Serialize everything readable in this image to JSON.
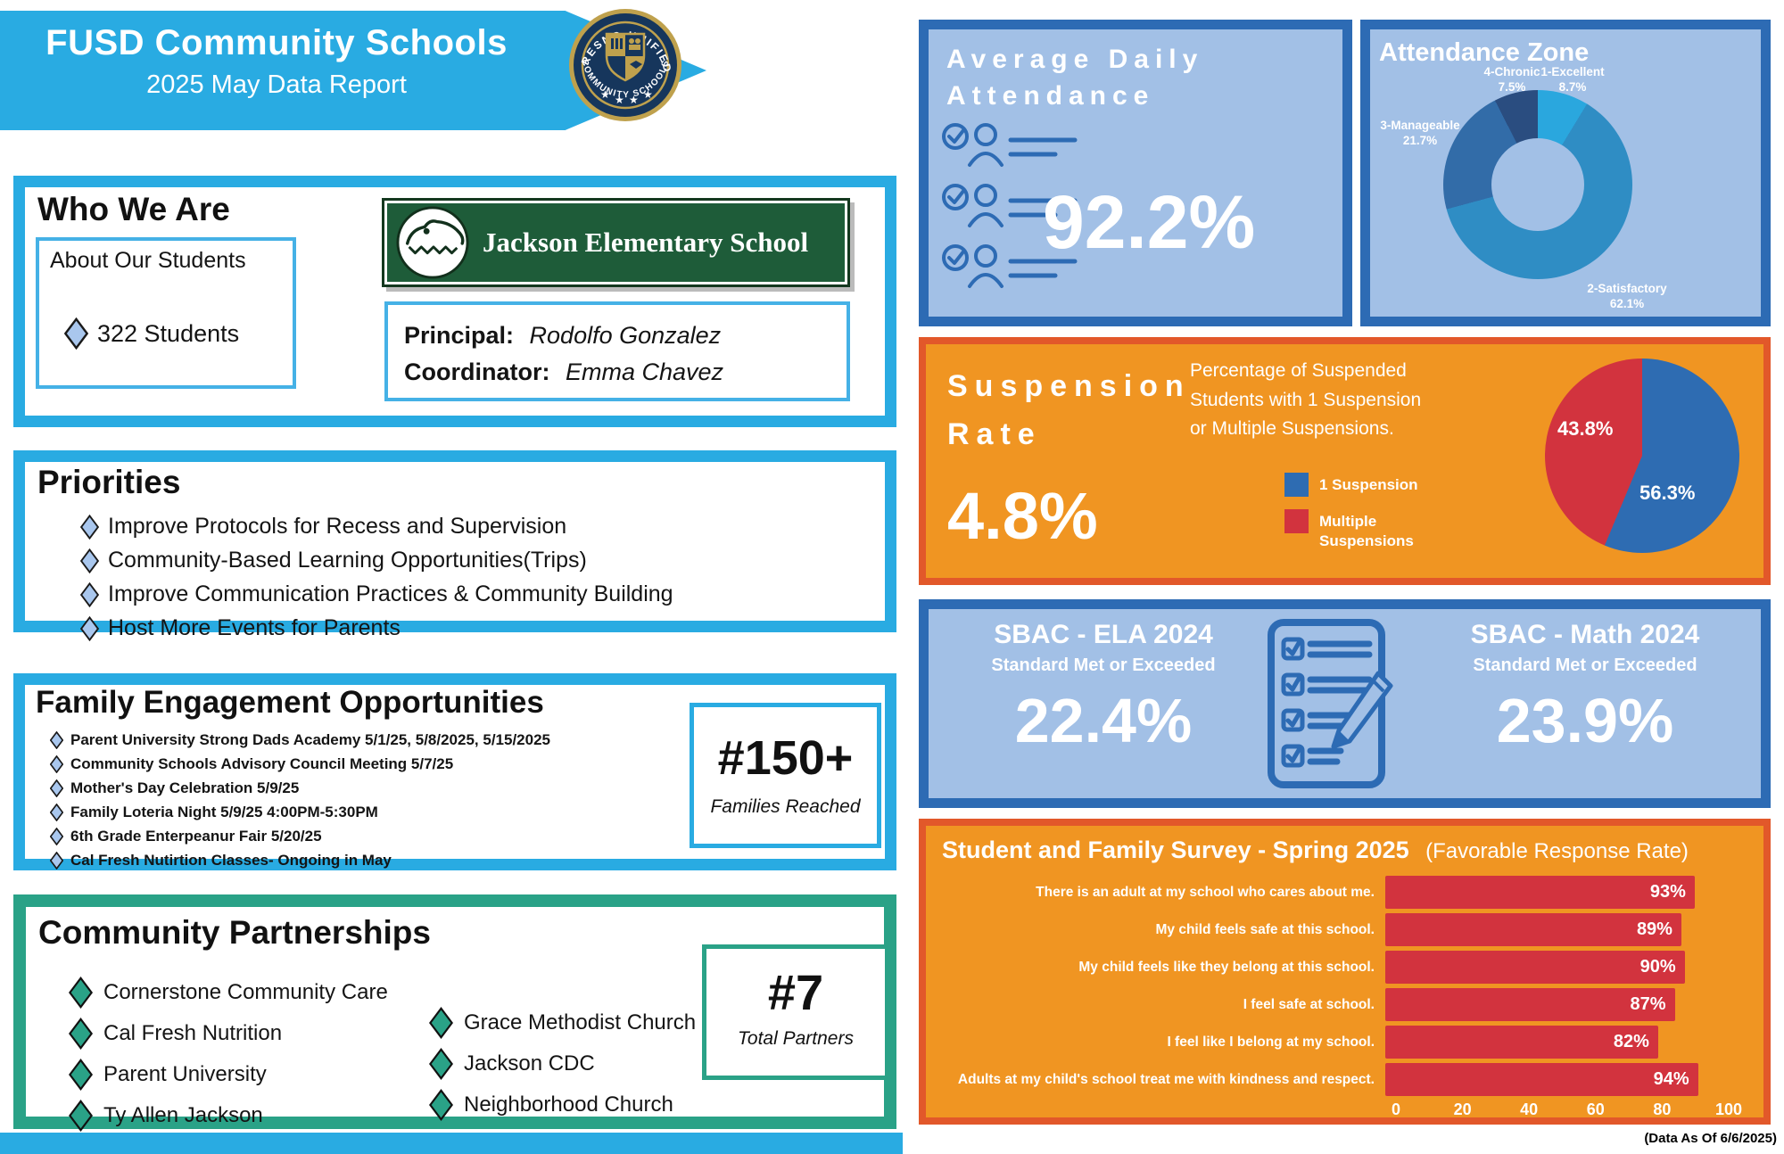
{
  "banner": {
    "title": "FUSD Community Schools",
    "subtitle": "2025 May Data Report"
  },
  "logo": {
    "top_text": "FRESNO UNIFIED",
    "bottom_text": "COMMUNITY SCHOOLS"
  },
  "who_we_are": {
    "title": "Who We Are",
    "about_label": "About Our Students",
    "students_count": "322 Students",
    "school_name": "Jackson Elementary School",
    "principal_label": "Principal:",
    "principal_name": "Rodolfo Gonzalez",
    "coordinator_label": "Coordinator:",
    "coordinator_name": "Emma Chavez"
  },
  "priorities": {
    "title": "Priorities",
    "items": [
      "Improve Protocols for Recess and Supervision",
      "Community-Based Learning Opportunities(Trips)",
      "Improve Communication Practices & Community Building",
      "Host More Events for Parents"
    ]
  },
  "family_engagement": {
    "title": "Family Engagement Opportunities",
    "items": [
      "Parent University Strong Dads Academy 5/1/25, 5/8/2025, 5/15/2025",
      "Community Schools Advisory Council Meeting 5/7/25",
      "Mother's Day Celebration 5/9/25",
      "Family Loteria Night 5/9/25 4:00PM-5:30PM",
      "6th Grade Enterpeanur Fair 5/20/25",
      "Cal Fresh Nutirtion Classes- Ongoing in May"
    ],
    "stat_value": "#150+",
    "stat_label": "Families Reached"
  },
  "partnerships": {
    "title": "Community Partnerships",
    "items_left": [
      "Cornerstone Community Care",
      "Cal Fresh Nutrition",
      "Parent University",
      "Ty Allen Jackson"
    ],
    "items_right": [
      "Grace Methodist Church",
      "Jackson CDC",
      "Neighborhood Church"
    ],
    "stat_value": "#7",
    "stat_label": "Total Partners"
  },
  "ada": {
    "title_line1": "Average Daily",
    "title_line2": "Attendance",
    "value": "92.2%"
  },
  "attendance_zone": {
    "title": "Attendance Zone",
    "slices": [
      {
        "name": "1-Excellent",
        "pct": 8.7,
        "pct_label": "8.7%",
        "color": "#2aa7de"
      },
      {
        "name": "2-Satisfactory",
        "pct": 62.1,
        "pct_label": "62.1%",
        "color": "#2f8dc4"
      },
      {
        "name": "3-Manageable",
        "pct": 21.7,
        "pct_label": "21.7%",
        "color": "#326ca8"
      },
      {
        "name": "4-Chronic",
        "pct": 7.5,
        "pct_label": "7.5%",
        "color": "#2a4d80"
      }
    ]
  },
  "suspension": {
    "title_line1": "Suspension",
    "title_line2": "Rate",
    "value": "4.8%",
    "description": "Percentage of Suspended Students with 1 Suspension or Multiple Suspensions.",
    "legend": [
      {
        "label": "1 Suspension",
        "color": "#2e6cb2"
      },
      {
        "label": "Multiple Suspensions",
        "color": "#d2333e"
      }
    ],
    "pie": [
      {
        "name": "1 Suspension",
        "pct": 56.3,
        "label": "56.3%",
        "color": "#2e6cb2"
      },
      {
        "name": "Multiple Suspensions",
        "pct": 43.8,
        "label": "43.8%",
        "color": "#d2333e"
      }
    ]
  },
  "sbac": {
    "ela_title": "SBAC - ELA 2024",
    "ela_subtitle": "Standard Met or Exceeded",
    "ela_value": "22.4%",
    "math_title": "SBAC - Math 2024",
    "math_subtitle": "Standard Met or Exceeded",
    "math_value": "23.9%"
  },
  "survey": {
    "title": "Student and Family Survey - Spring 2025",
    "subtitle": "(Favorable Response Rate)",
    "rows": [
      {
        "label": "There is an adult at my school who cares about me.",
        "value": 93,
        "display": "93%"
      },
      {
        "label": "My child feels safe at this school.",
        "value": 89,
        "display": "89%"
      },
      {
        "label": "My child feels like they belong at this school.",
        "value": 90,
        "display": "90%"
      },
      {
        "label": "I feel safe at school.",
        "value": 87,
        "display": "87%"
      },
      {
        "label": "I feel like I belong at my school.",
        "value": 82,
        "display": "82%"
      },
      {
        "label": "Adults at my child's school treat me with kindness and respect.",
        "value": 94,
        "display": "94%"
      }
    ],
    "axis": [
      "0",
      "20",
      "40",
      "60",
      "80",
      "100"
    ]
  },
  "footer": {
    "data_as_of": "(Data As Of 6/6/2025)"
  },
  "colors": {
    "cyan": "#29abe2",
    "dark_blue": "#2d6bb4",
    "light_blue_fill": "#a2c0e6",
    "orange": "#f09522",
    "orange_border": "#e2582a",
    "red": "#d2333e",
    "green": "#2aa287",
    "school_green": "#1e5c39",
    "seal_navy": "#16365c",
    "seal_gold": "#bfa14d"
  },
  "chart_data": [
    {
      "type": "pie",
      "style": "donut",
      "title": "Attendance Zone",
      "categories": [
        "1-Excellent",
        "2-Satisfactory",
        "3-Manageable",
        "4-Chronic"
      ],
      "values": [
        8.7,
        62.1,
        21.7,
        7.5
      ],
      "colors": [
        "#2aa7de",
        "#2f8dc4",
        "#326ca8",
        "#2a4d80"
      ],
      "legend_position": "around-donut"
    },
    {
      "type": "pie",
      "title": "Suspension Rate - 1 vs Multiple Suspensions",
      "categories": [
        "1 Suspension",
        "Multiple Suspensions"
      ],
      "values": [
        56.3,
        43.8
      ],
      "colors": [
        "#2e6cb2",
        "#d2333e"
      ],
      "legend_position": "left"
    },
    {
      "type": "bar",
      "orientation": "horizontal",
      "title": "Student and Family Survey - Spring 2025 (Favorable Response Rate)",
      "categories": [
        "There is an adult at my school who cares about me.",
        "My child feels safe at this school.",
        "My child feels like they belong at this school.",
        "I feel safe at school.",
        "I feel like I belong at my school.",
        "Adults at my child's school treat me with kindness and respect."
      ],
      "values": [
        93,
        89,
        90,
        87,
        82,
        94
      ],
      "xlim": [
        0,
        100
      ],
      "xticks": [
        0,
        20,
        40,
        60,
        80,
        100
      ],
      "bar_color": "#d2333e",
      "grid": false
    }
  ]
}
